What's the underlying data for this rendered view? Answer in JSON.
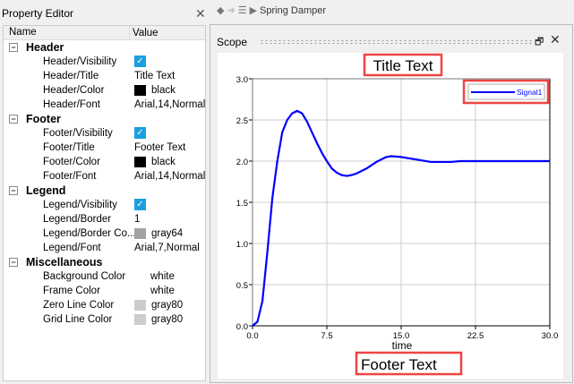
{
  "property_editor": {
    "title": "Property Editor",
    "columns": [
      "Name",
      "Value"
    ],
    "categories": [
      {
        "label": "Header",
        "items": [
          {
            "name": "Header/Visibility",
            "type": "checkbox",
            "checked": true
          },
          {
            "name": "Header/Title",
            "value": "Title Text"
          },
          {
            "name": "Header/Color",
            "value": "black",
            "swatch": "#000000"
          },
          {
            "name": "Header/Font",
            "value": "Arial,14,Normal"
          }
        ]
      },
      {
        "label": "Footer",
        "items": [
          {
            "name": "Footer/Visibility",
            "type": "checkbox",
            "checked": true
          },
          {
            "name": "Footer/Title",
            "value": "Footer Text"
          },
          {
            "name": "Footer/Color",
            "value": "black",
            "swatch": "#000000"
          },
          {
            "name": "Footer/Font",
            "value": "Arial,14,Normal"
          }
        ]
      },
      {
        "label": "Legend",
        "items": [
          {
            "name": "Legend/Visibility",
            "type": "checkbox",
            "checked": true
          },
          {
            "name": "Legend/Border",
            "value": "1"
          },
          {
            "name": "Legend/Border Co...",
            "value": "gray64",
            "swatch": "#a3a3a3"
          },
          {
            "name": "Legend/Font",
            "value": "Arial,7,Normal"
          }
        ]
      },
      {
        "label": "Miscellaneous",
        "items": [
          {
            "name": "Background Color",
            "value": "white"
          },
          {
            "name": "Frame Color",
            "value": "white"
          },
          {
            "name": "Zero Line Color",
            "value": "gray80",
            "swatch": "#cccccc"
          },
          {
            "name": "Grid Line Color",
            "value": "gray80",
            "swatch": "#cccccc"
          }
        ]
      }
    ]
  },
  "breadcrumb": {
    "label": "Spring Damper"
  },
  "scope": {
    "title": "Scope"
  },
  "chart_data": {
    "type": "line",
    "title": "Title Text",
    "footer": "Footer Text",
    "xlabel": "time",
    "ylabel": "",
    "xlim": [
      0,
      30
    ],
    "ylim": [
      0,
      3
    ],
    "xticks": [
      "0.0",
      "7.5",
      "15.0",
      "22.5",
      "30.0"
    ],
    "yticks": [
      "0.0",
      "0.5",
      "1.0",
      "1.5",
      "2.0",
      "2.5",
      "3.0"
    ],
    "grid": true,
    "legend_position": "top-right",
    "series": [
      {
        "name": "Signal1",
        "color": "#0000ff",
        "x": [
          0,
          0.5,
          1,
          1.5,
          2,
          2.5,
          3,
          3.5,
          4,
          4.5,
          5,
          5.5,
          6,
          6.5,
          7,
          7.5,
          8,
          8.5,
          9,
          9.5,
          10,
          10.5,
          11,
          11.5,
          12,
          12.5,
          13,
          13.5,
          14,
          15,
          16,
          17,
          18,
          19,
          20,
          21,
          22,
          30
        ],
        "y": [
          0,
          0.05,
          0.3,
          0.9,
          1.55,
          2.0,
          2.35,
          2.5,
          2.58,
          2.61,
          2.58,
          2.48,
          2.35,
          2.22,
          2.1,
          2.0,
          1.91,
          1.86,
          1.83,
          1.82,
          1.83,
          1.85,
          1.88,
          1.91,
          1.95,
          1.99,
          2.02,
          2.05,
          2.06,
          2.05,
          2.03,
          2.01,
          1.99,
          1.99,
          1.99,
          2.0,
          2.0,
          2.0
        ]
      }
    ],
    "highlight_color": "#ee4444"
  }
}
